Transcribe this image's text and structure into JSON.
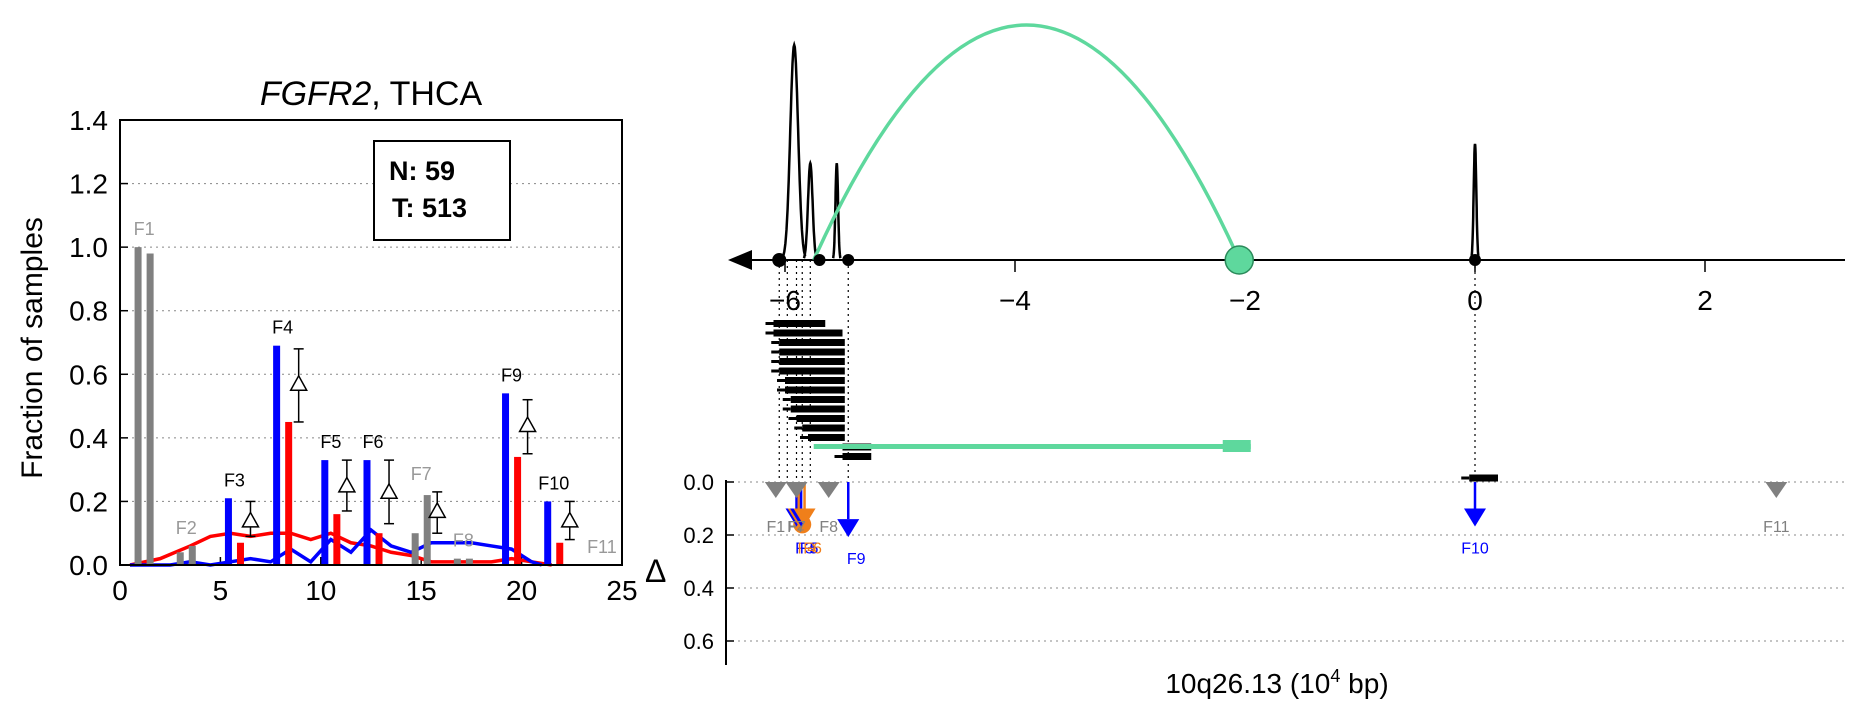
{
  "chart_data": [
    {
      "type": "bar",
      "title_gene": "FGFR2",
      "title_rest": ", THCA",
      "ylabel": "Fraction of samples",
      "xlim": [
        0,
        25
      ],
      "ylim": [
        0,
        1.4
      ],
      "xticks": [
        "0",
        "5",
        "10",
        "15",
        "20",
        "25"
      ],
      "yticks": [
        "0.0",
        "0.2",
        "0.4",
        "0.6",
        "0.8",
        "1.0",
        "1.2",
        "1.4"
      ],
      "grid": "horizontal dotted",
      "legend_box": {
        "line1": "N: 59",
        "line2": "T: 513",
        "placement": "top-right"
      },
      "colors": {
        "normal": "#0000ff",
        "tumor": "#ff0000",
        "neutral": "#808080",
        "label": "#000000",
        "grey_label": "#999999"
      },
      "features": [
        {
          "name": "F1",
          "significant": false,
          "x_normal": 0.9,
          "x_tumor": 1.5,
          "normal": 1.0,
          "tumor": 0.98,
          "delta_mark": null,
          "delta_err": null
        },
        {
          "name": "F2",
          "significant": false,
          "x_normal": 3.0,
          "x_tumor": 3.6,
          "normal": 0.04,
          "tumor": 0.06,
          "delta_mark": null,
          "delta_err": null
        },
        {
          "name": "F3",
          "significant": true,
          "x_normal": 5.4,
          "x_tumor": 6.0,
          "normal": 0.21,
          "tumor": 0.07,
          "delta_mark": 0.14,
          "delta_err": [
            0.09,
            0.2
          ]
        },
        {
          "name": "F4",
          "significant": true,
          "x_normal": 7.8,
          "x_tumor": 8.4,
          "normal": 0.69,
          "tumor": 0.45,
          "delta_mark": 0.57,
          "delta_err": [
            0.45,
            0.68
          ]
        },
        {
          "name": "F5",
          "significant": true,
          "x_normal": 10.2,
          "x_tumor": 10.8,
          "normal": 0.33,
          "tumor": 0.16,
          "delta_mark": 0.25,
          "delta_err": [
            0.17,
            0.33
          ]
        },
        {
          "name": "F6",
          "significant": true,
          "x_normal": 12.3,
          "x_tumor": 12.9,
          "normal": 0.33,
          "tumor": 0.1,
          "delta_mark": 0.23,
          "delta_err": [
            0.13,
            0.33
          ]
        },
        {
          "name": "F7",
          "significant": false,
          "x_normal": 14.7,
          "x_tumor": 15.3,
          "normal": 0.1,
          "tumor": 0.22,
          "delta_mark": 0.17,
          "delta_err": [
            0.1,
            0.23
          ]
        },
        {
          "name": "F8",
          "significant": false,
          "x_normal": 16.8,
          "x_tumor": 17.4,
          "normal": 0.02,
          "tumor": 0.02,
          "delta_mark": null,
          "delta_err": null
        },
        {
          "name": "F9",
          "significant": true,
          "x_normal": 19.2,
          "x_tumor": 19.8,
          "normal": 0.54,
          "tumor": 0.34,
          "delta_mark": 0.44,
          "delta_err": [
            0.35,
            0.52
          ]
        },
        {
          "name": "F10",
          "significant": true,
          "x_normal": 21.3,
          "x_tumor": 21.9,
          "normal": 0.2,
          "tumor": 0.07,
          "delta_mark": 0.14,
          "delta_err": [
            0.08,
            0.2
          ]
        },
        {
          "name": "F11",
          "significant": false,
          "x_normal": 23.7,
          "x_tumor": 24.3,
          "normal": 0.0,
          "tumor": 0.0,
          "delta_mark": null,
          "delta_err": null
        }
      ],
      "series": [
        {
          "name": "",
          "color": "#ff0000",
          "x": [
            0.5,
            2.0,
            3.5,
            4.5,
            5.5,
            6.5,
            7.5,
            8.5,
            9.5,
            10.5,
            11.5,
            12.5,
            13.5,
            14.5,
            15.5,
            16.5,
            17.5,
            18.5,
            19.5,
            20.5,
            21.5
          ],
          "y": [
            0.0,
            0.02,
            0.06,
            0.09,
            0.1,
            0.09,
            0.1,
            0.1,
            0.08,
            0.1,
            0.07,
            0.06,
            0.04,
            0.03,
            0.01,
            0.01,
            0.01,
            0.01,
            0.02,
            0.01,
            0.0
          ]
        },
        {
          "name": "",
          "color": "#0000ff",
          "x": [
            0.5,
            2.5,
            3.5,
            4.5,
            5.5,
            6.5,
            7.5,
            8.5,
            9.5,
            10.5,
            11.5,
            12.5,
            13.5,
            14.5,
            15.5,
            16.5,
            17.5,
            18.5,
            19.5,
            20.5,
            21.0
          ],
          "y": [
            0.0,
            0.0,
            0.01,
            0.0,
            0.01,
            0.02,
            0.01,
            0.05,
            0.01,
            0.08,
            0.04,
            0.11,
            0.06,
            0.04,
            0.07,
            0.07,
            0.07,
            0.06,
            0.05,
            0.01,
            0.0
          ]
        }
      ]
    },
    {
      "type": "line",
      "xlabel_main": "10q26.13 (10",
      "xlabel_sup": "4",
      "xlabel_end": " bp)",
      "xlim": [
        -6.5,
        3.1
      ],
      "xticks": [
        {
          "value": -6,
          "label": "−6"
        },
        {
          "value": -4,
          "label": "−4"
        },
        {
          "value": -2,
          "label": "−2"
        },
        {
          "value": 0,
          "label": "0"
        },
        {
          "value": 2,
          "label": "2"
        }
      ],
      "delta_axis": {
        "symbol": "Δ",
        "ylim": [
          0.0,
          0.7
        ],
        "ticks": [
          "0.0",
          "0.2",
          "0.4",
          "0.6"
        ]
      },
      "gene_direction": "reverse",
      "peaks": [
        {
          "x": -5.92,
          "height": 1.0,
          "width": 0.06
        },
        {
          "x": -5.78,
          "height": 0.45,
          "width": 0.035
        },
        {
          "x": -5.55,
          "height": 0.45,
          "width": 0.02
        },
        {
          "x": 0.0,
          "height": 0.54,
          "width": 0.02
        }
      ],
      "exon_dots": [
        -6.05,
        -5.7,
        -5.45,
        0.0
      ],
      "fusion_arc": {
        "from": -5.75,
        "to": -2.05,
        "color": "#5ed89d"
      },
      "read_bars": [
        {
          "start": -6.1,
          "end": -5.65
        },
        {
          "start": -6.1,
          "end": -5.5
        },
        {
          "start": -6.05,
          "end": -5.48
        },
        {
          "start": -6.05,
          "end": -5.48
        },
        {
          "start": -6.05,
          "end": -5.48
        },
        {
          "start": -6.05,
          "end": -5.48
        },
        {
          "start": -6.0,
          "end": -5.48
        },
        {
          "start": -6.0,
          "end": -5.48
        },
        {
          "start": -5.95,
          "end": -5.48
        },
        {
          "start": -5.95,
          "end": -5.48
        },
        {
          "start": -5.9,
          "end": -5.48
        },
        {
          "start": -5.85,
          "end": -5.48
        },
        {
          "start": -5.8,
          "end": -5.48
        },
        {
          "start": -5.5,
          "end": -5.25
        },
        {
          "start": -5.5,
          "end": -5.25
        },
        {
          "start": -0.05,
          "end": 0.2
        }
      ],
      "fusion_bar": {
        "start": -5.75,
        "end": -1.95
      },
      "markers": [
        {
          "name": "F1",
          "x": -6.08,
          "delta": 0.0,
          "shape": "down-triangle",
          "color": "#808080"
        },
        {
          "name": "F2",
          "x": -5.85,
          "delta": 0.16,
          "shape": "circle",
          "color": "#f07f1a"
        },
        {
          "name": "F3",
          "x": -5.9,
          "delta": 0.1,
          "shape": "arrow",
          "color": "#0000ff"
        },
        {
          "name": "F4",
          "x": -5.88,
          "delta": 0.1,
          "shape": "arrow",
          "color": "#f07f1a"
        },
        {
          "name": "F5",
          "x": -5.86,
          "delta": 0.1,
          "shape": "arrow",
          "color": "#0000ff"
        },
        {
          "name": "F6",
          "x": -5.83,
          "delta": 0.1,
          "shape": "arrow",
          "color": "#f07f1a"
        },
        {
          "name": "F7",
          "x": -5.9,
          "delta": 0.0,
          "shape": "down-triangle",
          "color": "#808080"
        },
        {
          "name": "F8",
          "x": -5.62,
          "delta": 0.0,
          "shape": "down-triangle",
          "color": "#808080"
        },
        {
          "name": "F9",
          "x": -5.45,
          "delta": 0.14,
          "shape": "arrow",
          "color": "#0000ff"
        },
        {
          "name": "F10",
          "x": 0.0,
          "delta": 0.1,
          "shape": "arrow",
          "color": "#0000ff"
        },
        {
          "name": "F11",
          "x": 2.62,
          "delta": 0.0,
          "shape": "down-triangle",
          "color": "#808080"
        }
      ],
      "colors": {
        "fusion": "#5ed89d",
        "normal": "#0000ff",
        "tumor_orange": "#f07f1a",
        "neutral": "#808080",
        "axis": "#000000"
      }
    }
  ]
}
